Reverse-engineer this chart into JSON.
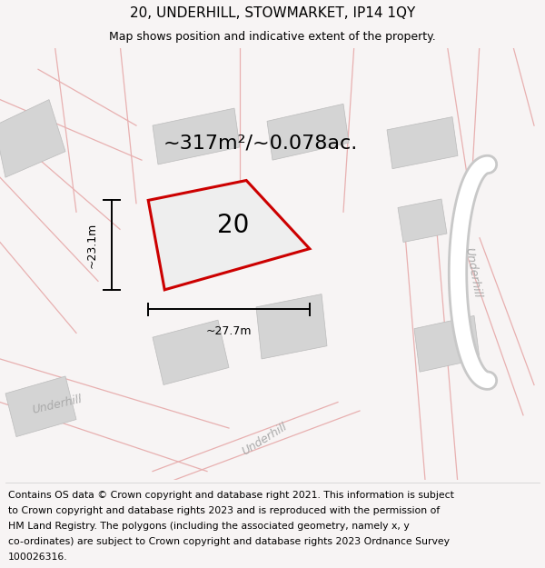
{
  "title": "20, UNDERHILL, STOWMARKET, IP14 1QY",
  "subtitle": "Map shows position and indicative extent of the property.",
  "area_label": "~317m²/~0.078ac.",
  "number_label": "20",
  "dim_h": "~23.1m",
  "dim_w": "~27.7m",
  "footer_lines": [
    "Contains OS data © Crown copyright and database right 2021. This information is subject",
    "to Crown copyright and database rights 2023 and is reproduced with the permission of",
    "HM Land Registry. The polygons (including the associated geometry, namely x, y",
    "co-ordinates) are subject to Crown copyright and database rights 2023 Ordnance Survey",
    "100026316."
  ],
  "bg_color": "#f7f4f4",
  "map_bg": "#ffffff",
  "road_pink": "#e8b0b0",
  "road_gray": "#c8c8c8",
  "building_color": "#d4d4d4",
  "building_edge": "#bbbbbb",
  "property_fill": "#eeeeee",
  "property_edge": "#cc0000",
  "street_label_color": "#aaaaaa",
  "title_fontsize": 11,
  "subtitle_fontsize": 9,
  "area_fontsize": 16,
  "number_fontsize": 20,
  "dim_fontsize": 9,
  "street_fontsize": 9,
  "footer_fontsize": 7.8
}
